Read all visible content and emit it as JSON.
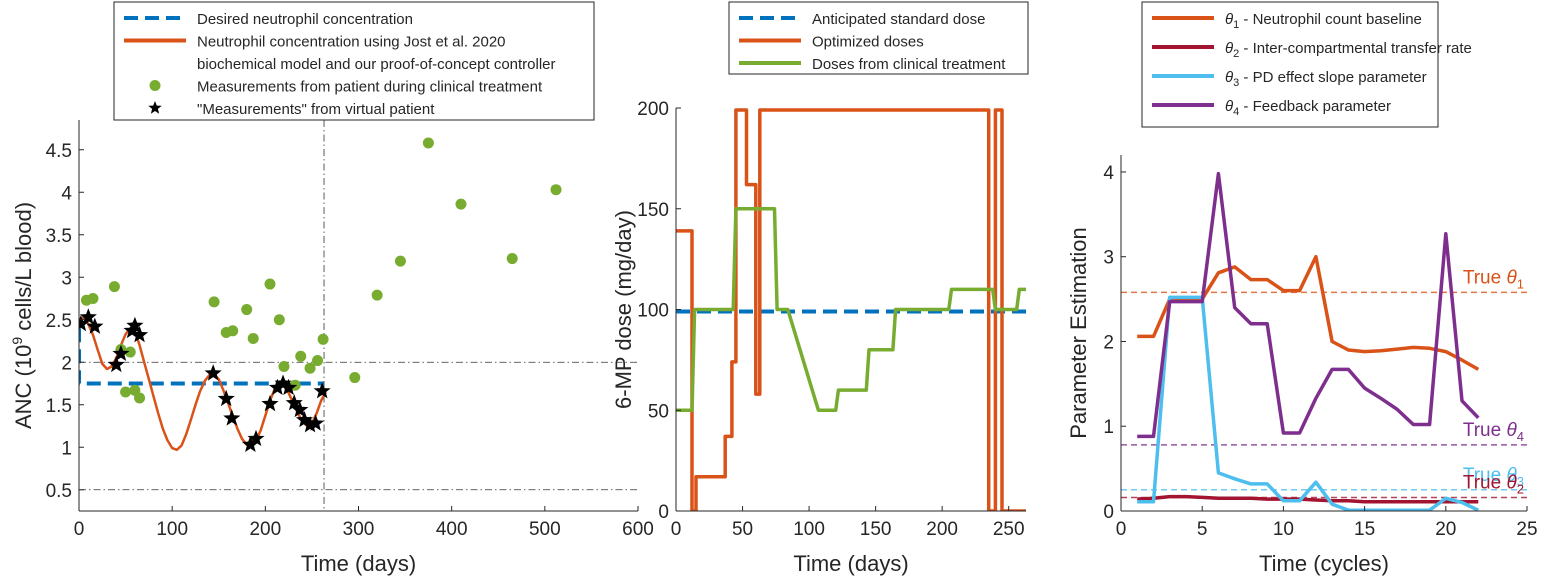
{
  "chart_data": [
    {
      "type": "scatter",
      "xlabel": "Time (days)",
      "ylabel_parts": {
        "before": "ANC (10",
        "sup": "9",
        "after": " cells/L blood)"
      },
      "xlim": [
        0,
        600
      ],
      "ylim": [
        0.25,
        4.85
      ],
      "xticks": [
        0,
        100,
        200,
        300,
        400,
        500,
        600
      ],
      "yticks": [
        0.5,
        1,
        1.5,
        2,
        2.5,
        3,
        3.5,
        4,
        4.5
      ],
      "grid": false,
      "legend_position": "top (outside, above axes)",
      "legend": [
        {
          "label": "Desired neutrophil concentration",
          "style": "dashed",
          "color": "#0072BD"
        },
        {
          "label": "Neutrophil concentration using Jost et al. 2020",
          "label2": "biochemical model and our proof-of-concept controller",
          "style": "solid",
          "color": "#D95319"
        },
        {
          "label": "Measurements from patient during clinical treatment",
          "style": "dot",
          "color": "#77AC30"
        },
        {
          "label": "\"Measurements\" from virtual patient",
          "style": "star",
          "color": "#000000"
        }
      ],
      "reference_lines": [
        {
          "kind": "vertical",
          "x": 263,
          "style": "dashdot",
          "color": "#333333"
        },
        {
          "kind": "horizontal",
          "y": 2.0,
          "style": "dashdot",
          "color": "#333333"
        },
        {
          "kind": "horizontal",
          "y": 0.5,
          "style": "dashdot",
          "color": "#333333"
        }
      ],
      "series": [
        {
          "name": "Desired neutrophil concentration",
          "kind": "step",
          "x": [
            0,
            0,
            263
          ],
          "y": [
            2.4,
            1.75,
            1.75
          ]
        },
        {
          "name": "Neutrophil concentration using Jost et al. 2020 biochemical model and our proof-of-concept controller",
          "kind": "line",
          "x": [
            0,
            5,
            10,
            15,
            20,
            25,
            30,
            35,
            40,
            45,
            50,
            55,
            60,
            65,
            70,
            75,
            80,
            85,
            90,
            95,
            100,
            105,
            110,
            115,
            120,
            125,
            130,
            135,
            140,
            145,
            150,
            155,
            160,
            165,
            170,
            175,
            180,
            185,
            190,
            195,
            200,
            205,
            210,
            215,
            220,
            225,
            230,
            235,
            240,
            245,
            250,
            255,
            260,
            265
          ],
          "y": [
            2.45,
            2.53,
            2.45,
            2.32,
            2.15,
            1.98,
            1.92,
            1.95,
            2.05,
            2.2,
            2.33,
            2.4,
            2.37,
            2.2,
            2.0,
            1.8,
            1.6,
            1.4,
            1.22,
            1.08,
            0.99,
            0.97,
            1.02,
            1.15,
            1.32,
            1.5,
            1.66,
            1.78,
            1.85,
            1.86,
            1.8,
            1.67,
            1.52,
            1.37,
            1.22,
            1.1,
            1.03,
            1.02,
            1.08,
            1.2,
            1.37,
            1.55,
            1.68,
            1.74,
            1.72,
            1.64,
            1.52,
            1.4,
            1.3,
            1.25,
            1.28,
            1.4,
            1.55,
            1.65
          ]
        },
        {
          "name": "Measurements from patient during clinical treatment",
          "kind": "scatter",
          "x": [
            8,
            15,
            38,
            45,
            50,
            55,
            60,
            65,
            145,
            158,
            165,
            180,
            187,
            205,
            215,
            220,
            232,
            238,
            248,
            256,
            262,
            296,
            320,
            345,
            375,
            410,
            465,
            512
          ],
          "y": [
            2.73,
            2.75,
            2.89,
            2.15,
            1.65,
            2.12,
            1.67,
            1.58,
            2.71,
            2.35,
            2.37,
            2.62,
            2.28,
            2.92,
            2.5,
            1.95,
            1.73,
            2.07,
            1.93,
            2.02,
            2.27,
            1.82,
            2.79,
            3.19,
            4.58,
            3.86,
            3.22,
            4.03
          ]
        },
        {
          "name": "\"Measurements\" from virtual patient",
          "kind": "star",
          "x": [
            2,
            10,
            17,
            40,
            45,
            57,
            60,
            65,
            144,
            158,
            164,
            184,
            190,
            205,
            213,
            219,
            225,
            231,
            237,
            242,
            248,
            254,
            261
          ],
          "y": [
            2.45,
            2.53,
            2.42,
            1.97,
            2.1,
            2.37,
            2.43,
            2.32,
            1.87,
            1.57,
            1.34,
            1.03,
            1.1,
            1.51,
            1.7,
            1.75,
            1.7,
            1.52,
            1.44,
            1.32,
            1.26,
            1.28,
            1.66
          ]
        }
      ]
    },
    {
      "type": "line",
      "xlabel": "Time (days)",
      "ylabel": "6-MP dose (mg/day)",
      "xlim": [
        0,
        263
      ],
      "ylim": [
        0,
        200
      ],
      "xticks": [
        0,
        50,
        100,
        150,
        200,
        250
      ],
      "yticks": [
        0,
        50,
        100,
        150,
        200
      ],
      "grid": false,
      "legend_position": "top (outside, above axes)",
      "legend": [
        {
          "label": "Anticipated standard dose",
          "style": "dashed",
          "color": "#0072BD"
        },
        {
          "label": "Optimized doses",
          "style": "solid",
          "color": "#D95319"
        },
        {
          "label": "Doses from clinical treatment",
          "style": "solid",
          "color": "#77AC30"
        }
      ],
      "series": [
        {
          "name": "Anticipated standard dose",
          "kind": "dashed",
          "x": [
            0,
            263
          ],
          "y": [
            99,
            99
          ]
        },
        {
          "name": "Optimized doses",
          "kind": "step",
          "x": [
            0,
            12,
            12,
            15,
            15,
            37,
            37,
            42,
            42,
            45,
            45,
            53,
            53,
            60,
            60,
            63,
            63,
            67,
            67,
            235,
            235,
            240,
            240,
            245,
            245,
            263
          ],
          "y": [
            139,
            139,
            0,
            0,
            17,
            17,
            37,
            37,
            74,
            74,
            199,
            199,
            162,
            162,
            58,
            58,
            199,
            199,
            199,
            199,
            0,
            0,
            199,
            199,
            0,
            0
          ]
        },
        {
          "name": "Doses from clinical treatment",
          "kind": "line",
          "x": [
            0,
            12,
            14,
            43,
            45,
            74,
            76,
            84,
            107,
            120,
            122,
            143,
            145,
            163,
            165,
            205,
            207,
            238,
            240,
            256,
            258,
            263
          ],
          "y": [
            50,
            50,
            100,
            100,
            150,
            150,
            100,
            100,
            50,
            50,
            60,
            60,
            80,
            80,
            100,
            100,
            110,
            110,
            100,
            100,
            110,
            110
          ]
        }
      ]
    },
    {
      "type": "line",
      "xlabel": "Time (cycles)",
      "ylabel": "Parameter Estimation",
      "xlim": [
        0,
        25
      ],
      "ylim": [
        0,
        4.2
      ],
      "xticks": [
        0,
        5,
        10,
        15,
        20,
        25
      ],
      "yticks": [
        0,
        1,
        2,
        3,
        4
      ],
      "grid": false,
      "legend_position": "top (outside, above axes)",
      "legend": [
        {
          "sym": "θ",
          "sub": "1",
          "label": " - Neutrophil count baseline",
          "color": "#D95319"
        },
        {
          "sym": "θ",
          "sub": "2",
          "label": " - Inter-compartmental transfer rate",
          "color": "#A2142F"
        },
        {
          "sym": "θ",
          "sub": "3",
          "label": " - PD effect slope parameter",
          "color": "#4DBEEE"
        },
        {
          "sym": "θ",
          "sub": "4",
          "label": " - Feedback parameter",
          "color": "#7E2F8E"
        }
      ],
      "annotations": [
        {
          "prefix": "True ",
          "sym": "θ",
          "sub": "1",
          "color": "#D95319",
          "y": 2.58
        },
        {
          "prefix": "True ",
          "sym": "θ",
          "sub": "4",
          "color": "#7E2F8E",
          "y": 0.78
        },
        {
          "prefix": "True ",
          "sym": "θ",
          "sub": "3",
          "color": "#4DBEEE",
          "y": 0.25
        },
        {
          "prefix": "True ",
          "sym": "θ",
          "sub": "2",
          "color": "#A2142F",
          "y": 0.16
        }
      ],
      "series": [
        {
          "name": "θ1",
          "color": "#D95319",
          "true_value": 2.58,
          "x": [
            1,
            2,
            3,
            4,
            5,
            6,
            7,
            8,
            9,
            10,
            11,
            12,
            13,
            14,
            15,
            16,
            17,
            18,
            19,
            20,
            21,
            22
          ],
          "y": [
            2.06,
            2.06,
            2.5,
            2.5,
            2.5,
            2.81,
            2.88,
            2.73,
            2.73,
            2.6,
            2.6,
            3.0,
            2.0,
            1.9,
            1.88,
            1.89,
            1.91,
            1.93,
            1.92,
            1.88,
            1.78,
            1.67
          ]
        },
        {
          "name": "θ2",
          "color": "#A2142F",
          "true_value": 0.16,
          "x": [
            1,
            2,
            3,
            4,
            5,
            6,
            7,
            8,
            9,
            10,
            11,
            12,
            13,
            14,
            15,
            16,
            17,
            18,
            19,
            20,
            21,
            22
          ],
          "y": [
            0.14,
            0.15,
            0.17,
            0.17,
            0.16,
            0.15,
            0.15,
            0.15,
            0.14,
            0.14,
            0.14,
            0.13,
            0.12,
            0.12,
            0.11,
            0.11,
            0.11,
            0.11,
            0.11,
            0.11,
            0.11,
            0.11
          ]
        },
        {
          "name": "θ3",
          "color": "#4DBEEE",
          "true_value": 0.25,
          "x": [
            1,
            2,
            3,
            4,
            5,
            6,
            7,
            8,
            9,
            10,
            11,
            12,
            13,
            14,
            15,
            16,
            17,
            18,
            19,
            20,
            21,
            22
          ],
          "y": [
            0.11,
            0.11,
            2.52,
            2.52,
            2.52,
            0.45,
            0.38,
            0.32,
            0.32,
            0.12,
            0.12,
            0.34,
            0.08,
            0.01,
            0.01,
            0.01,
            0.01,
            0.01,
            0.01,
            0.15,
            0.1,
            0.01
          ]
        },
        {
          "name": "θ4",
          "color": "#7E2F8E",
          "true_value": 0.78,
          "x": [
            1,
            2,
            3,
            4,
            5,
            6,
            7,
            8,
            9,
            10,
            11,
            12,
            13,
            14,
            15,
            16,
            17,
            18,
            19,
            20,
            21,
            22
          ],
          "y": [
            0.88,
            0.88,
            2.47,
            2.47,
            2.47,
            3.98,
            2.4,
            2.21,
            2.21,
            0.92,
            0.92,
            1.33,
            1.67,
            1.67,
            1.45,
            1.33,
            1.2,
            1.02,
            1.02,
            3.27,
            1.3,
            1.1
          ]
        }
      ]
    }
  ]
}
